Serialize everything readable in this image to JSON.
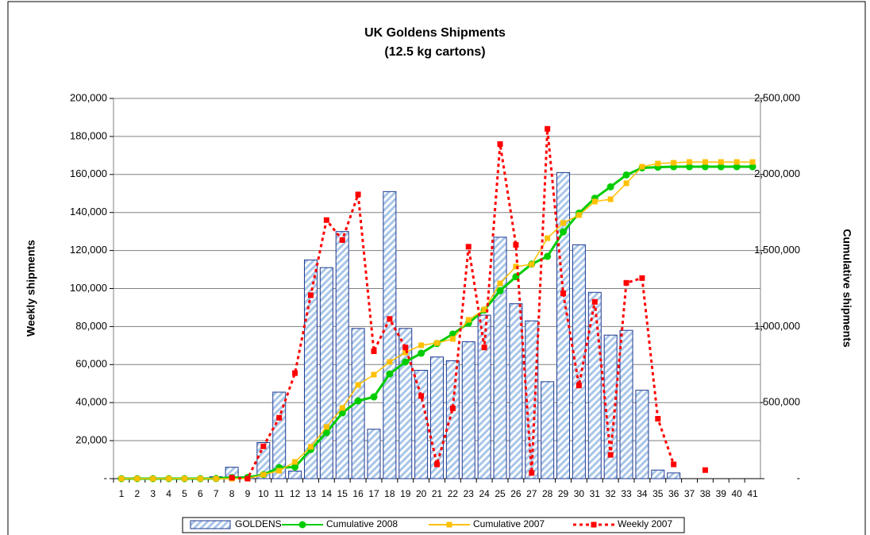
{
  "chart_data": {
    "type": "bar-line",
    "title": "UK Goldens Shipments",
    "subtitle": "(12.5 kg cartons)",
    "y_label": "Weekly shipments",
    "y2_label": "Cumulative shipments",
    "categories": [
      "1",
      "2",
      "3",
      "4",
      "5",
      "6",
      "7",
      "8",
      "9",
      "10",
      "11",
      "12",
      "13",
      "14",
      "15",
      "16",
      "17",
      "18",
      "19",
      "20",
      "21",
      "22",
      "23",
      "24",
      "25",
      "26",
      "27",
      "28",
      "29",
      "30",
      "31",
      "32",
      "33",
      "34",
      "35",
      "36",
      "37",
      "38",
      "39",
      "40",
      "41"
    ],
    "ylim": [
      0,
      200000
    ],
    "yticks": [
      {
        "value": 0,
        "label": "-"
      },
      {
        "value": 20000,
        "label": "20,000"
      },
      {
        "value": 40000,
        "label": "40,000"
      },
      {
        "value": 60000,
        "label": "60,000"
      },
      {
        "value": 80000,
        "label": "80,000"
      },
      {
        "value": 100000,
        "label": "100,000"
      },
      {
        "value": 120000,
        "label": "120,000"
      },
      {
        "value": 140000,
        "label": "140,000"
      },
      {
        "value": 160000,
        "label": "160,000"
      },
      {
        "value": 180000,
        "label": "180,000"
      },
      {
        "value": 200000,
        "label": "200,000"
      }
    ],
    "y2lim": [
      0,
      2500000
    ],
    "y2ticks": [
      {
        "value": 0,
        "label": "-"
      },
      {
        "value": 500000,
        "label": "500,000"
      },
      {
        "value": 1000000,
        "label": "1,000,000"
      },
      {
        "value": 1500000,
        "label": "1,500,000"
      },
      {
        "value": 2000000,
        "label": "2,000,000"
      },
      {
        "value": 2500000,
        "label": "2,500,000"
      }
    ],
    "grid": true,
    "legend": "bottom",
    "series": [
      {
        "name": "GOLDENS",
        "type": "bar",
        "color": "#1f3a8f",
        "fill": "#a9c6e8",
        "values": [
          0,
          0,
          0,
          0,
          0,
          0,
          1000,
          6000,
          1000,
          19000,
          45500,
          4000,
          115000,
          111000,
          130000,
          79000,
          26000,
          151000,
          79000,
          57000,
          64000,
          62000,
          72000,
          86000,
          127000,
          92000,
          83000,
          51000,
          161000,
          123000,
          98000,
          75500,
          78000,
          46500,
          4500,
          3000,
          0,
          0,
          0,
          0,
          0
        ]
      },
      {
        "name": "Cumulative 2008",
        "type": "line",
        "axis": "y2",
        "color": "#00cc00",
        "marker": "circle",
        "line_style": "solid",
        "values": [
          0,
          0,
          0,
          0,
          0,
          0,
          1000,
          7000,
          8000,
          27000,
          72500,
          76500,
          191500,
          302500,
          432500,
          511500,
          537500,
          688500,
          767500,
          824500,
          888500,
          950500,
          1022500,
          1108500,
          1235500,
          1327500,
          1410500,
          1461500,
          1622500,
          1745500,
          1843500,
          1919000,
          1997000,
          2043500,
          2048000,
          2051000,
          2051000,
          2051000,
          2051000,
          2051000,
          2051000
        ]
      },
      {
        "name": "Cumulative 2007",
        "type": "line",
        "axis": "y2",
        "color": "#ffc000",
        "marker": "square",
        "line_style": "solid",
        "values": [
          0,
          0,
          0,
          0,
          0,
          0,
          0,
          0,
          0,
          26000,
          52000,
          110000,
          209000,
          340000,
          465000,
          616000,
          684000,
          767000,
          830000,
          877000,
          892000,
          919000,
          1044000,
          1112000,
          1284000,
          1394000,
          1409000,
          1581000,
          1681000,
          1733000,
          1822000,
          1837000,
          1942000,
          2051000,
          2072000,
          2077000,
          2082000,
          2082000,
          2082000,
          2082000,
          2082000
        ]
      },
      {
        "name": "Weekly 2007",
        "type": "line",
        "color": "#ff0000",
        "marker": "square",
        "line_style": "dotted",
        "values": [
          null,
          null,
          null,
          null,
          null,
          null,
          null,
          500,
          0,
          17000,
          32000,
          55500,
          96500,
          136000,
          125500,
          149500,
          67000,
          84000,
          69000,
          43500,
          7500,
          37000,
          122000,
          69000,
          176000,
          123000,
          3000,
          184000,
          97500,
          49000,
          93000,
          12500,
          103000,
          105500,
          31500,
          7500,
          null,
          4500,
          null,
          null,
          null
        ]
      }
    ]
  }
}
